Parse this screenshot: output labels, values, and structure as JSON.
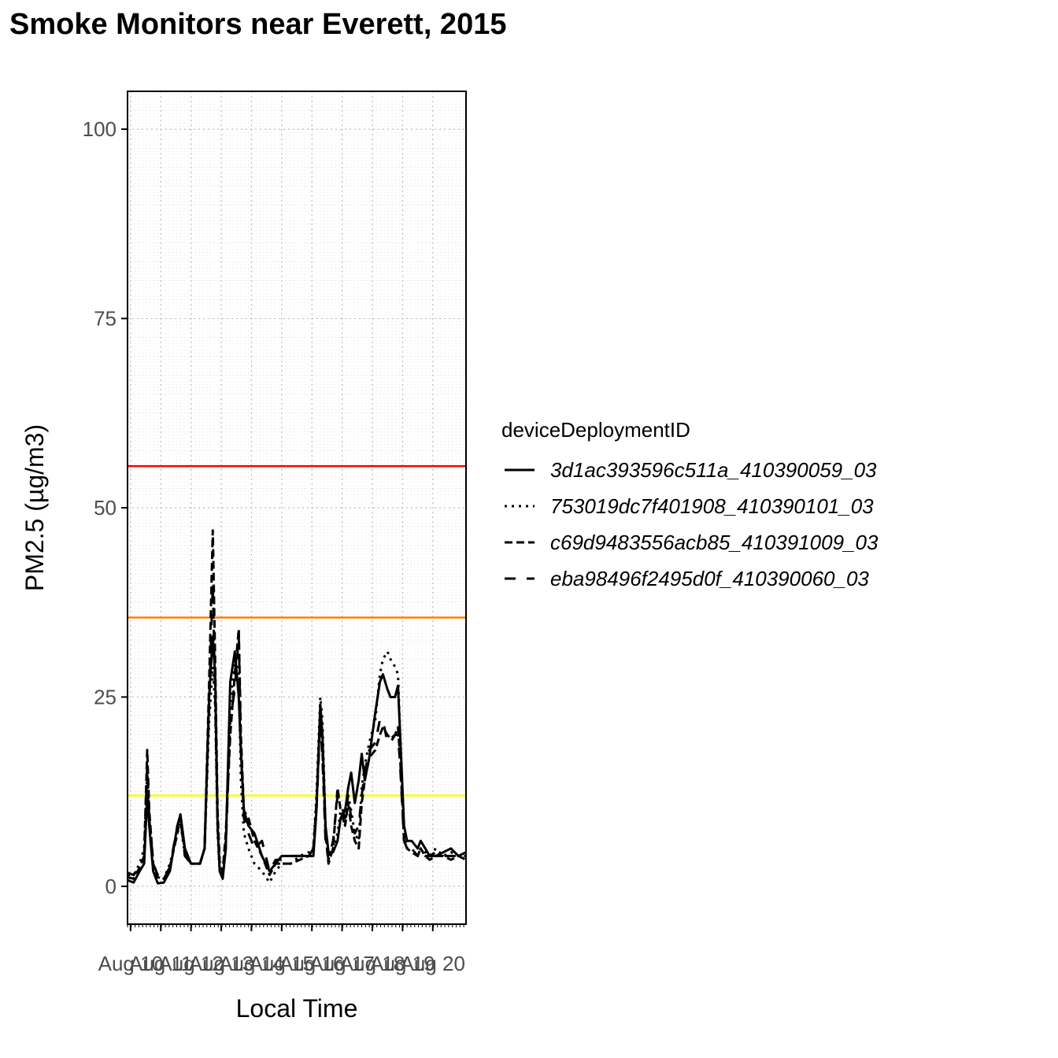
{
  "chart_data": {
    "type": "line",
    "title": "Smoke Monitors near Everett, 2015",
    "xlabel": "Local Time",
    "ylabel": "PM2.5 (µg/m3)",
    "ylim": [
      -5,
      105
    ],
    "yticks": [
      0,
      25,
      50,
      75,
      100
    ],
    "xlim": [
      9.9,
      21.1
    ],
    "x_ticks": [
      {
        "x": 10,
        "label": "Aug 10"
      },
      {
        "x": 11,
        "label": "Aug 11"
      },
      {
        "x": 12,
        "label": "Aug 12"
      },
      {
        "x": 13,
        "label": "Aug 13"
      },
      {
        "x": 14,
        "label": "Aug 14"
      },
      {
        "x": 15,
        "label": "Aug 15"
      },
      {
        "x": 16,
        "label": "Aug 16"
      },
      {
        "x": 17,
        "label": "Aug 17"
      },
      {
        "x": 18,
        "label": "Aug 18"
      },
      {
        "x": 19,
        "label": "Aug 19"
      },
      {
        "x": 20,
        "label": "Aug 20"
      }
    ],
    "grid": true,
    "legend_title": "deviceDeploymentID",
    "legend_position": "right",
    "thresholds": [
      {
        "y": 12,
        "color": "#ffff00"
      },
      {
        "y": 35.5,
        "color": "#ff7e00"
      },
      {
        "y": 55.5,
        "color": "#ff0000"
      }
    ],
    "series": [
      {
        "name": "3d1ac393596c511a_410390059_03",
        "dash": "",
        "points": [
          [
            9.9,
            0.8
          ],
          [
            10.1,
            0.5
          ],
          [
            10.3,
            2
          ],
          [
            10.45,
            3
          ],
          [
            10.55,
            12
          ],
          [
            10.62,
            8
          ],
          [
            10.75,
            2
          ],
          [
            10.9,
            0.4
          ],
          [
            11.1,
            0.5
          ],
          [
            11.3,
            2
          ],
          [
            11.55,
            8
          ],
          [
            11.65,
            9.5
          ],
          [
            11.8,
            5
          ],
          [
            12.0,
            3
          ],
          [
            12.3,
            3
          ],
          [
            12.45,
            5
          ],
          [
            12.6,
            25
          ],
          [
            12.72,
            33
          ],
          [
            12.8,
            28
          ],
          [
            12.88,
            8
          ],
          [
            12.95,
            2
          ],
          [
            13.05,
            1
          ],
          [
            13.15,
            5
          ],
          [
            13.3,
            27
          ],
          [
            13.45,
            31
          ],
          [
            13.58,
            25
          ],
          [
            13.65,
            18
          ],
          [
            13.75,
            10
          ],
          [
            13.9,
            8
          ],
          [
            14.1,
            7
          ],
          [
            14.35,
            4
          ],
          [
            14.6,
            2
          ],
          [
            14.8,
            3
          ],
          [
            15.0,
            4
          ],
          [
            15.3,
            4
          ],
          [
            15.6,
            4
          ],
          [
            15.9,
            4
          ],
          [
            16.05,
            4
          ],
          [
            16.15,
            10
          ],
          [
            16.28,
            24
          ],
          [
            16.35,
            20
          ],
          [
            16.45,
            8
          ],
          [
            16.55,
            4.5
          ],
          [
            16.7,
            4.5
          ],
          [
            16.85,
            6
          ],
          [
            16.95,
            9
          ],
          [
            17.1,
            10
          ],
          [
            17.2,
            13
          ],
          [
            17.3,
            15
          ],
          [
            17.42,
            11
          ],
          [
            17.55,
            14
          ],
          [
            17.65,
            17.5
          ],
          [
            17.75,
            14
          ],
          [
            17.9,
            17
          ],
          [
            18.1,
            23
          ],
          [
            18.25,
            27
          ],
          [
            18.35,
            28
          ],
          [
            18.5,
            26
          ],
          [
            18.6,
            25
          ],
          [
            18.75,
            25
          ],
          [
            18.85,
            26.5
          ],
          [
            18.92,
            20
          ],
          [
            19.05,
            8
          ],
          [
            19.15,
            6
          ],
          [
            19.3,
            6
          ],
          [
            19.5,
            5
          ],
          [
            19.6,
            6
          ],
          [
            19.75,
            5
          ],
          [
            19.9,
            4
          ],
          [
            20.1,
            4
          ],
          [
            20.35,
            4.5
          ],
          [
            20.6,
            5
          ],
          [
            20.85,
            4
          ],
          [
            21.1,
            4.5
          ]
        ]
      },
      {
        "name": "753019dc7f401908_410390101_03",
        "dash": "3,6",
        "points": [
          [
            9.9,
            1.5
          ],
          [
            10.1,
            1.5
          ],
          [
            10.3,
            3
          ],
          [
            10.45,
            5
          ],
          [
            10.55,
            15
          ],
          [
            10.62,
            9
          ],
          [
            10.75,
            3
          ],
          [
            10.9,
            1.5
          ],
          [
            11.1,
            1
          ],
          [
            11.3,
            3
          ],
          [
            11.55,
            7
          ],
          [
            11.65,
            8.5
          ],
          [
            11.8,
            4
          ],
          [
            12.0,
            3
          ],
          [
            12.3,
            3
          ],
          [
            12.45,
            5
          ],
          [
            12.6,
            22
          ],
          [
            12.72,
            29
          ],
          [
            12.8,
            24
          ],
          [
            12.88,
            7
          ],
          [
            12.95,
            2
          ],
          [
            13.05,
            1.5
          ],
          [
            13.15,
            6
          ],
          [
            13.3,
            24
          ],
          [
            13.45,
            30
          ],
          [
            13.58,
            28
          ],
          [
            13.65,
            14
          ],
          [
            13.75,
            7
          ],
          [
            13.9,
            5
          ],
          [
            14.1,
            3
          ],
          [
            14.35,
            2
          ],
          [
            14.6,
            0.5
          ],
          [
            14.8,
            2
          ],
          [
            15.0,
            3
          ],
          [
            15.3,
            3
          ],
          [
            15.6,
            4
          ],
          [
            15.9,
            4.5
          ],
          [
            16.05,
            5
          ],
          [
            16.15,
            12
          ],
          [
            16.28,
            25
          ],
          [
            16.35,
            22
          ],
          [
            16.45,
            8
          ],
          [
            16.55,
            4
          ],
          [
            16.7,
            5
          ],
          [
            16.85,
            7
          ],
          [
            16.95,
            10
          ],
          [
            17.1,
            8
          ],
          [
            17.2,
            12
          ],
          [
            17.3,
            10
          ],
          [
            17.42,
            7
          ],
          [
            17.55,
            6
          ],
          [
            17.65,
            13
          ],
          [
            17.75,
            16
          ],
          [
            17.9,
            19
          ],
          [
            18.1,
            22
          ],
          [
            18.25,
            28
          ],
          [
            18.35,
            30
          ],
          [
            18.5,
            31
          ],
          [
            18.6,
            30
          ],
          [
            18.75,
            29
          ],
          [
            18.85,
            28
          ],
          [
            18.92,
            20
          ],
          [
            19.05,
            7
          ],
          [
            19.15,
            5
          ],
          [
            19.3,
            5
          ],
          [
            19.5,
            4
          ],
          [
            19.6,
            5
          ],
          [
            19.75,
            4.5
          ],
          [
            19.9,
            4
          ],
          [
            20.1,
            5
          ],
          [
            20.35,
            4
          ],
          [
            20.6,
            4.5
          ],
          [
            20.85,
            4
          ],
          [
            21.1,
            4
          ]
        ]
      },
      {
        "name": "c69d9483556acb85_410391009_03",
        "dash": "10,5",
        "points": [
          [
            9.9,
            1.2
          ],
          [
            10.1,
            1
          ],
          [
            10.3,
            2.5
          ],
          [
            10.45,
            4
          ],
          [
            10.55,
            18
          ],
          [
            10.62,
            10
          ],
          [
            10.75,
            3
          ],
          [
            10.9,
            1.2
          ],
          [
            11.1,
            1
          ],
          [
            11.3,
            2.5
          ],
          [
            11.55,
            7
          ],
          [
            11.65,
            9
          ],
          [
            11.8,
            4.5
          ],
          [
            12.0,
            3
          ],
          [
            12.3,
            3
          ],
          [
            12.45,
            5
          ],
          [
            12.6,
            27
          ],
          [
            12.72,
            47
          ],
          [
            12.8,
            30
          ],
          [
            12.88,
            10
          ],
          [
            12.95,
            3
          ],
          [
            13.05,
            2
          ],
          [
            13.15,
            7
          ],
          [
            13.3,
            20
          ],
          [
            13.45,
            28
          ],
          [
            13.58,
            34
          ],
          [
            13.65,
            20
          ],
          [
            13.75,
            10
          ],
          [
            13.9,
            9
          ],
          [
            14.1,
            6
          ],
          [
            14.35,
            4
          ],
          [
            14.6,
            1.5
          ],
          [
            14.8,
            3
          ],
          [
            15.0,
            3
          ],
          [
            15.3,
            3
          ],
          [
            15.6,
            3.5
          ],
          [
            15.9,
            4
          ],
          [
            16.05,
            5
          ],
          [
            16.15,
            11
          ],
          [
            16.28,
            23
          ],
          [
            16.35,
            18
          ],
          [
            16.45,
            7
          ],
          [
            16.55,
            3
          ],
          [
            16.7,
            5
          ],
          [
            16.85,
            13
          ],
          [
            16.95,
            10
          ],
          [
            17.1,
            8
          ],
          [
            17.2,
            11
          ],
          [
            17.3,
            8
          ],
          [
            17.42,
            6
          ],
          [
            17.55,
            5
          ],
          [
            17.65,
            11
          ],
          [
            17.75,
            14
          ],
          [
            17.9,
            17
          ],
          [
            18.1,
            18
          ],
          [
            18.25,
            20
          ],
          [
            18.35,
            21
          ],
          [
            18.5,
            20
          ],
          [
            18.6,
            19.5
          ],
          [
            18.75,
            20
          ],
          [
            18.85,
            21
          ],
          [
            18.92,
            17
          ],
          [
            19.05,
            6
          ],
          [
            19.15,
            5
          ],
          [
            19.3,
            4.5
          ],
          [
            19.5,
            4
          ],
          [
            19.6,
            5
          ],
          [
            19.75,
            4
          ],
          [
            19.9,
            3.5
          ],
          [
            20.1,
            4
          ],
          [
            20.35,
            4
          ],
          [
            20.6,
            3.5
          ],
          [
            20.85,
            4
          ],
          [
            21.1,
            3.5
          ]
        ]
      },
      {
        "name": "eba98496f2495d0f_410390060_03",
        "dash": "14,14",
        "points": [
          [
            9.9,
            1.8
          ],
          [
            10.1,
            1.5
          ],
          [
            10.3,
            2.5
          ],
          [
            10.45,
            3.5
          ],
          [
            10.55,
            16
          ],
          [
            10.62,
            9
          ],
          [
            10.75,
            3
          ],
          [
            10.9,
            1.5
          ],
          [
            11.1,
            1.2
          ],
          [
            11.3,
            2.5
          ],
          [
            11.55,
            8
          ],
          [
            11.65,
            9
          ],
          [
            11.8,
            4
          ],
          [
            12.0,
            3
          ],
          [
            12.3,
            3
          ],
          [
            12.45,
            5
          ],
          [
            12.6,
            24
          ],
          [
            12.72,
            40
          ],
          [
            12.8,
            25
          ],
          [
            12.88,
            8
          ],
          [
            12.95,
            2
          ],
          [
            13.05,
            1.5
          ],
          [
            13.15,
            5
          ],
          [
            13.3,
            22
          ],
          [
            13.45,
            26
          ],
          [
            13.58,
            33
          ],
          [
            13.65,
            18
          ],
          [
            13.75,
            9
          ],
          [
            13.9,
            7
          ],
          [
            14.1,
            5
          ],
          [
            14.35,
            6
          ],
          [
            14.6,
            2
          ],
          [
            14.8,
            3.5
          ],
          [
            15.0,
            3.5
          ],
          [
            15.3,
            4
          ],
          [
            15.6,
            4
          ],
          [
            15.9,
            4
          ],
          [
            16.05,
            5
          ],
          [
            16.15,
            10
          ],
          [
            16.28,
            22
          ],
          [
            16.35,
            17
          ],
          [
            16.45,
            6
          ],
          [
            16.55,
            3.5
          ],
          [
            16.7,
            6
          ],
          [
            16.85,
            12
          ],
          [
            16.95,
            11
          ],
          [
            17.1,
            9
          ],
          [
            17.2,
            12
          ],
          [
            17.3,
            9
          ],
          [
            17.42,
            7
          ],
          [
            17.55,
            8
          ],
          [
            17.65,
            12
          ],
          [
            17.75,
            15
          ],
          [
            17.9,
            18
          ],
          [
            18.1,
            19
          ],
          [
            18.25,
            22
          ],
          [
            18.35,
            22
          ],
          [
            18.5,
            19
          ],
          [
            18.6,
            19
          ],
          [
            18.75,
            20
          ],
          [
            18.85,
            20
          ],
          [
            18.92,
            16
          ],
          [
            19.05,
            6
          ],
          [
            19.15,
            5
          ],
          [
            19.3,
            5
          ],
          [
            19.5,
            4
          ],
          [
            19.6,
            5
          ],
          [
            19.75,
            4
          ],
          [
            19.9,
            4
          ],
          [
            20.1,
            4.5
          ],
          [
            20.35,
            4
          ],
          [
            20.6,
            4
          ],
          [
            20.85,
            4
          ],
          [
            21.1,
            4
          ]
        ]
      }
    ]
  }
}
